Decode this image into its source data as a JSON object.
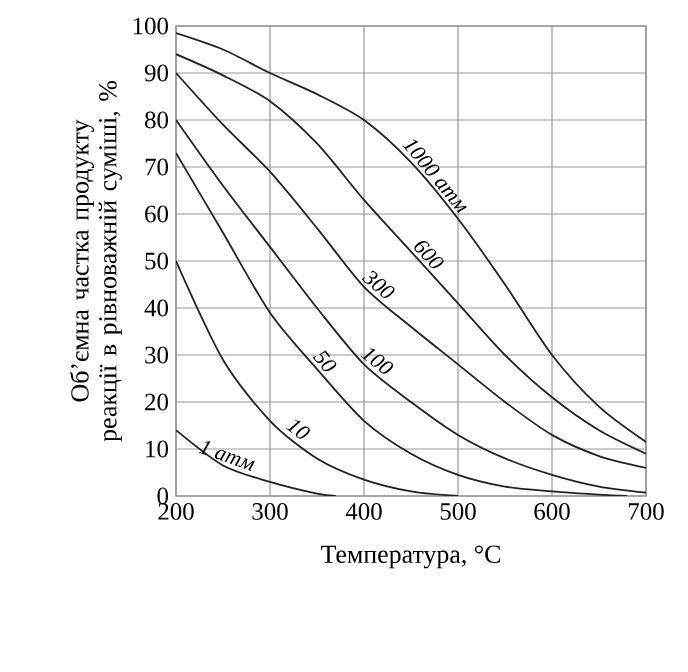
{
  "chart_data": {
    "type": "line",
    "xlabel": "Температура, °C",
    "ylabel": "Об’ємна частка продукту реакції в рівноважній суміші, %",
    "xlim": [
      200,
      700
    ],
    "ylim": [
      0,
      100
    ],
    "xticks": [
      200,
      300,
      400,
      500,
      600,
      700
    ],
    "yticks": [
      0,
      10,
      20,
      30,
      40,
      50,
      60,
      70,
      80,
      90,
      100
    ],
    "grid": true,
    "marker": "none",
    "line_style": "solid",
    "series": [
      {
        "name": "1 атм",
        "color": "#222222",
        "x": [
          200,
          250,
          300,
          350,
          370
        ],
        "values": [
          14,
          6.5,
          3,
          0.5,
          0
        ]
      },
      {
        "name": "10",
        "color": "#222222",
        "x": [
          200,
          250,
          300,
          350,
          400,
          450,
          500
        ],
        "values": [
          50,
          29,
          16,
          8,
          3.5,
          1,
          0
        ]
      },
      {
        "name": "50",
        "color": "#222222",
        "x": [
          200,
          250,
          300,
          350,
          400,
          450,
          500,
          550,
          600,
          650,
          680
        ],
        "values": [
          73,
          56,
          39,
          27,
          16,
          9,
          4.5,
          2,
          1,
          0.3,
          0
        ]
      },
      {
        "name": "100",
        "color": "#222222",
        "x": [
          200,
          250,
          300,
          350,
          400,
          450,
          500,
          550,
          600,
          650,
          700
        ],
        "values": [
          80,
          66,
          53,
          40,
          28,
          20,
          13,
          8,
          4.5,
          2,
          0.7
        ]
      },
      {
        "name": "300",
        "color": "#222222",
        "x": [
          200,
          250,
          300,
          350,
          400,
          450,
          500,
          550,
          600,
          650,
          700
        ],
        "values": [
          90,
          79,
          69,
          57,
          44.5,
          36,
          28,
          20,
          13,
          8.5,
          6
        ]
      },
      {
        "name": "600",
        "color": "#222222",
        "x": [
          200,
          250,
          300,
          350,
          400,
          450,
          500,
          550,
          600,
          650,
          700
        ],
        "values": [
          94,
          89.5,
          84,
          75,
          63,
          52,
          41,
          30,
          21,
          14,
          9
        ]
      },
      {
        "name": "1000 атм",
        "color": "#222222",
        "x": [
          200,
          250,
          300,
          350,
          400,
          450,
          500,
          550,
          600,
          650,
          700
        ],
        "values": [
          98.5,
          95,
          90,
          85.5,
          80,
          71,
          59,
          45,
          30,
          19,
          11.5
        ]
      }
    ]
  }
}
